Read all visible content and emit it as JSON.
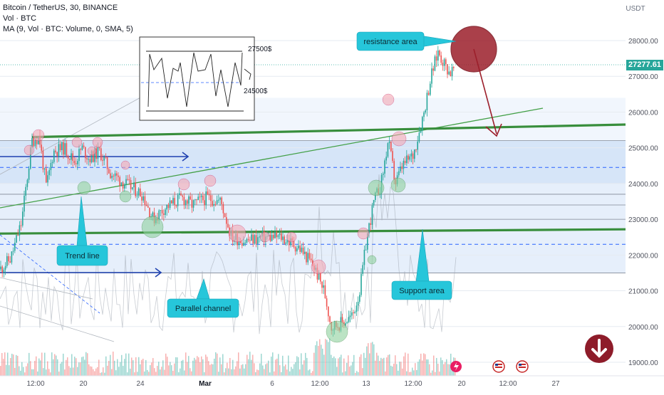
{
  "header": {
    "symbol": "Bitcoin / TetherUS, 30, BINANCE",
    "volume": "Vol · BTC",
    "ma": "MA (9, Vol · BTC: Volume, 0, SMA, 5)"
  },
  "axis": {
    "currency": "USDT",
    "y_ticks": [
      "28000.00",
      "27000.00",
      "26000.00",
      "25000.00",
      "24000.00",
      "23000.00",
      "22000.00",
      "21000.00",
      "20000.00",
      "19000.00"
    ],
    "x_ticks": [
      "12:00",
      "20",
      "24",
      "Mar",
      "6",
      "12:00",
      "13",
      "12:00",
      "20",
      "12:00",
      "27"
    ]
  },
  "last_price": "27277.61",
  "colors": {
    "up": "#26a69a",
    "down": "#ef5350",
    "channel": "#2962ff",
    "support_line": "#388e3c",
    "label_bg": "#26c6da",
    "resistance_circle": "#9c1f2b",
    "price_badge": "#26a69a"
  },
  "annotations": {
    "resistance": "resistance area",
    "trend": "Trend line",
    "parallel": "Parallel channel",
    "support": "Support area",
    "inset_high": "27500$",
    "inset_low": "24500$"
  },
  "chart_data": {
    "type": "candlestick",
    "title": "Bitcoin / TetherUS, 30, BINANCE",
    "ylabel": "USDT",
    "ylim": [
      18800,
      28600
    ],
    "price_path": [
      [
        0,
        21600
      ],
      [
        15,
        21900
      ],
      [
        30,
        22900
      ],
      [
        45,
        25200
      ],
      [
        55,
        25300
      ],
      [
        65,
        23900
      ],
      [
        75,
        24900
      ],
      [
        90,
        25000
      ],
      [
        105,
        24600
      ],
      [
        115,
        25000
      ],
      [
        125,
        24700
      ],
      [
        140,
        24900
      ],
      [
        155,
        24300
      ],
      [
        175,
        24000
      ],
      [
        200,
        23700
      ],
      [
        215,
        23000
      ],
      [
        230,
        23300
      ],
      [
        255,
        23600
      ],
      [
        270,
        23400
      ],
      [
        290,
        23600
      ],
      [
        310,
        23500
      ],
      [
        325,
        22500
      ],
      [
        345,
        22400
      ],
      [
        370,
        22500
      ],
      [
        395,
        22500
      ],
      [
        420,
        22200
      ],
      [
        440,
        21700
      ],
      [
        455,
        21000
      ],
      [
        465,
        20000
      ],
      [
        480,
        20100
      ],
      [
        495,
        20300
      ],
      [
        505,
        21000
      ],
      [
        515,
        22500
      ],
      [
        525,
        23500
      ],
      [
        535,
        24000
      ],
      [
        545,
        25200
      ],
      [
        555,
        24000
      ],
      [
        565,
        24500
      ],
      [
        580,
        24800
      ],
      [
        595,
        26000
      ],
      [
        605,
        27000
      ],
      [
        615,
        27700
      ],
      [
        625,
        27300
      ],
      [
        632,
        27100
      ],
      [
        640,
        27270
      ]
    ],
    "last_price": 27277.61,
    "support_lines": [
      22600,
      25600
    ],
    "channel_upper": 25200,
    "channel_lower": 21500,
    "inset_levels": [
      27500,
      24500
    ]
  }
}
